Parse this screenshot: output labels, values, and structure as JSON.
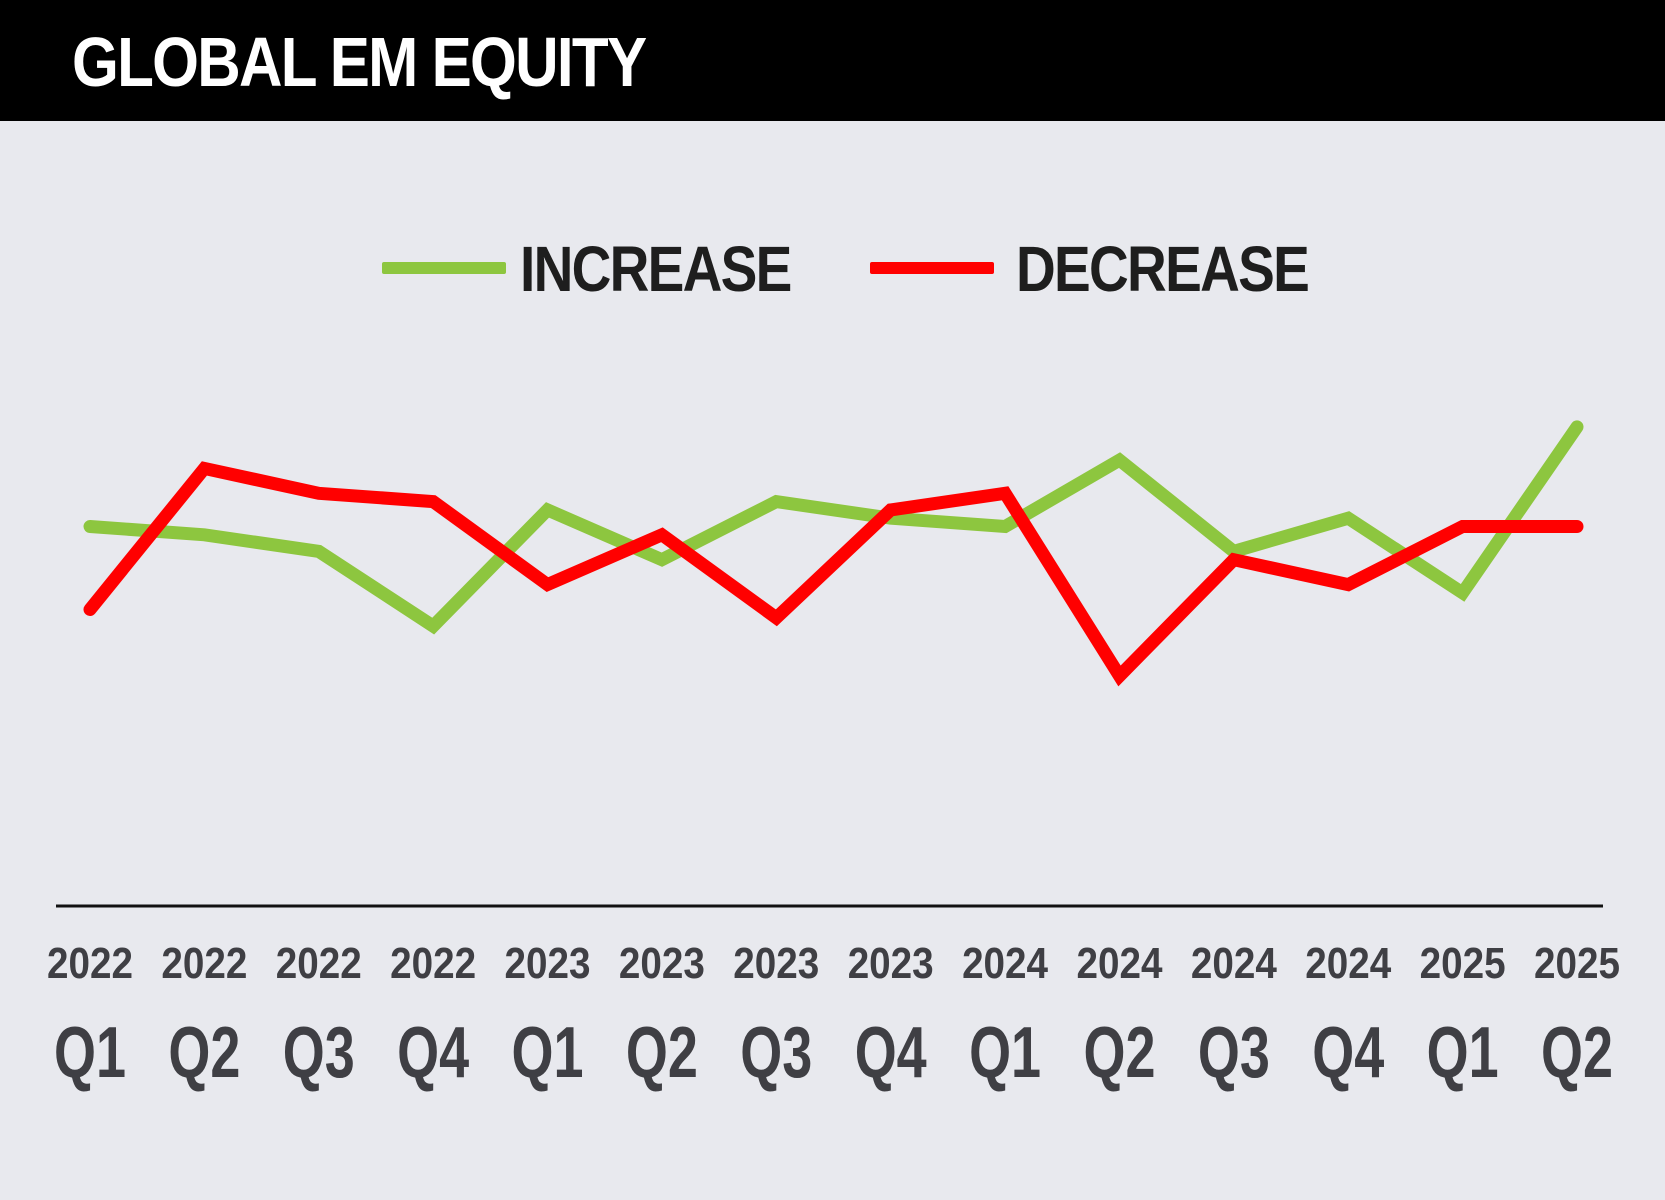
{
  "chart_data": {
    "type": "line",
    "title": "GLOBAL EM EQUITY",
    "categories": [
      [
        "2022",
        "Q1"
      ],
      [
        "2022",
        "Q2"
      ],
      [
        "2022",
        "Q3"
      ],
      [
        "2022",
        "Q4"
      ],
      [
        "2023",
        "Q1"
      ],
      [
        "2023",
        "Q2"
      ],
      [
        "2023",
        "Q3"
      ],
      [
        "2023",
        "Q4"
      ],
      [
        "2024",
        "Q1"
      ],
      [
        "2024",
        "Q2"
      ],
      [
        "2024",
        "Q3"
      ],
      [
        "2024",
        "Q4"
      ],
      [
        "2025",
        "Q1"
      ],
      [
        "2025",
        "Q2"
      ]
    ],
    "series": [
      {
        "name": "INCREASE",
        "color": "#8dc63f",
        "values": [
          45,
          44,
          42,
          33,
          47,
          41,
          48,
          46,
          45,
          53,
          42,
          46,
          37,
          57
        ]
      },
      {
        "name": "DECREASE",
        "color": "#ff0000",
        "values": [
          35,
          52,
          49,
          48,
          38,
          44,
          34,
          47,
          49,
          27,
          41,
          38,
          45,
          45
        ]
      }
    ],
    "ylim": [
      0,
      100
    ],
    "grid": false,
    "legend_position": "top"
  }
}
